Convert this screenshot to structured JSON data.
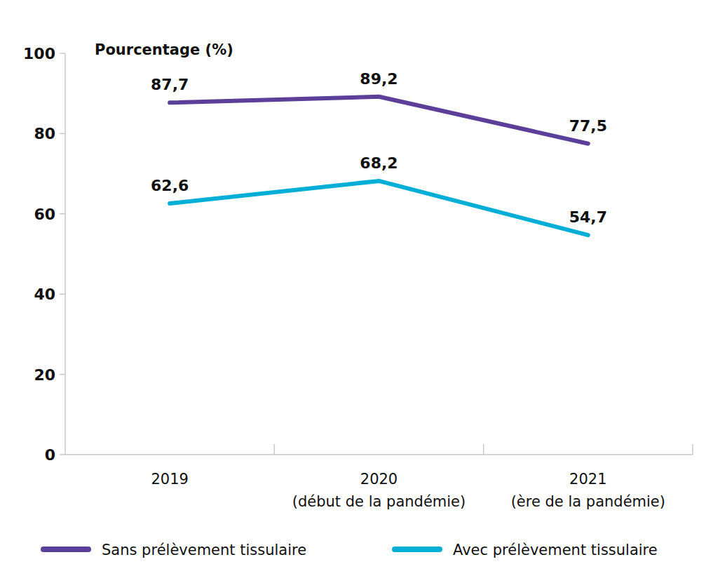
{
  "chart_data": {
    "type": "line",
    "y_label": "Pourcentage (%)",
    "categories": [
      "2019",
      "2020\n(début de la pandémie)",
      "2021\n(ère de la pandémie)"
    ],
    "series": [
      {
        "name": "Sans prélèvement tissulaire",
        "color": "#5b3f98",
        "values": [
          87.7,
          89.2,
          77.5
        ],
        "value_labels": [
          "87,7",
          "89,2",
          "77,5"
        ]
      },
      {
        "name": "Avec prélèvement tissulaire",
        "color": "#00aed6",
        "values": [
          62.6,
          68.2,
          54.7
        ],
        "value_labels": [
          "62,6",
          "68,2",
          "54,7"
        ]
      }
    ],
    "ylim": [
      0,
      100
    ],
    "yticks": [
      0,
      20,
      40,
      60,
      80,
      100
    ],
    "data_labels": true,
    "grid": false,
    "legend": "bottom"
  }
}
